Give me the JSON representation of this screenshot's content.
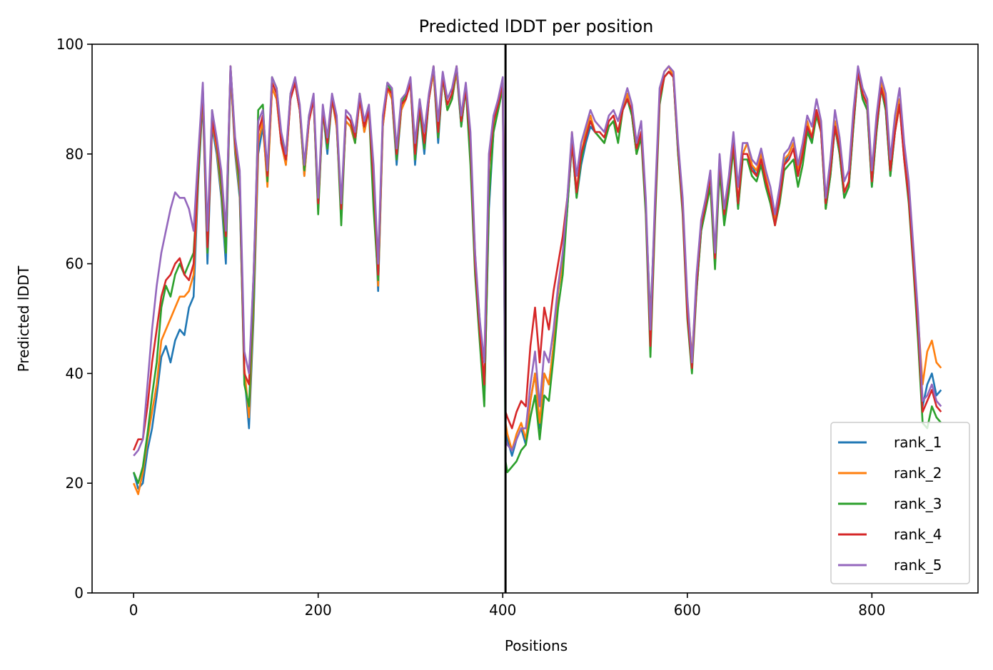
{
  "chart_data": {
    "type": "line",
    "title": "Predicted lDDT per position",
    "xlabel": "Positions",
    "ylabel": "Predicted lDDT",
    "xlim": [
      -45,
      915
    ],
    "ylim": [
      0,
      100
    ],
    "xticks": [
      0,
      200,
      400,
      600,
      800
    ],
    "yticks": [
      0,
      20,
      40,
      60,
      80,
      100
    ],
    "grid": false,
    "legend_position": "lower-right",
    "chain_break": 403,
    "colors": {
      "rank_1": "#1f77b4",
      "rank_2": "#ff7f0e",
      "rank_3": "#2ca02c",
      "rank_4": "#d62728",
      "rank_5": "#9467bd",
      "chain_break": "#000000"
    },
    "x": [
      0,
      5,
      10,
      15,
      20,
      25,
      30,
      35,
      40,
      45,
      50,
      55,
      60,
      65,
      70,
      75,
      80,
      85,
      90,
      95,
      100,
      105,
      110,
      115,
      120,
      125,
      130,
      135,
      140,
      145,
      150,
      155,
      160,
      165,
      170,
      175,
      180,
      185,
      190,
      195,
      200,
      205,
      210,
      215,
      220,
      225,
      230,
      235,
      240,
      245,
      250,
      255,
      260,
      265,
      270,
      275,
      280,
      285,
      290,
      295,
      300,
      305,
      310,
      315,
      320,
      325,
      330,
      335,
      340,
      345,
      350,
      355,
      360,
      365,
      370,
      375,
      380,
      385,
      390,
      395,
      400,
      403,
      405,
      410,
      415,
      420,
      425,
      430,
      435,
      440,
      445,
      450,
      455,
      460,
      465,
      470,
      475,
      480,
      485,
      490,
      495,
      500,
      505,
      510,
      515,
      520,
      525,
      530,
      535,
      540,
      545,
      550,
      555,
      560,
      565,
      570,
      575,
      580,
      585,
      590,
      595,
      600,
      605,
      610,
      615,
      620,
      625,
      630,
      635,
      640,
      645,
      650,
      655,
      660,
      665,
      670,
      675,
      680,
      685,
      690,
      695,
      700,
      705,
      710,
      715,
      720,
      725,
      730,
      735,
      740,
      745,
      750,
      755,
      760,
      765,
      770,
      775,
      780,
      785,
      790,
      795,
      800,
      805,
      810,
      815,
      820,
      825,
      830,
      835,
      840,
      845,
      850,
      855,
      860,
      865,
      870,
      875
    ],
    "series": [
      {
        "name": "rank_1",
        "values": [
          22,
          19,
          20,
          26,
          30,
          36,
          43,
          45,
          42,
          46,
          48,
          47,
          52,
          54,
          75,
          90,
          60,
          85,
          80,
          72,
          60,
          95,
          80,
          72,
          40,
          30,
          50,
          80,
          85,
          75,
          92,
          90,
          82,
          78,
          90,
          93,
          88,
          76,
          86,
          90,
          70,
          88,
          80,
          90,
          85,
          70,
          86,
          85,
          82,
          90,
          84,
          88,
          75,
          55,
          85,
          92,
          90,
          78,
          88,
          90,
          93,
          78,
          88,
          80,
          90,
          95,
          82,
          94,
          88,
          90,
          95,
          85,
          92,
          80,
          60,
          50,
          35,
          70,
          84,
          88,
          92,
          30,
          28,
          25,
          28,
          30,
          27,
          35,
          40,
          30,
          40,
          38,
          45,
          55,
          60,
          70,
          82,
          72,
          78,
          82,
          85,
          84,
          83,
          82,
          85,
          86,
          84,
          88,
          90,
          87,
          80,
          84,
          70,
          50,
          70,
          90,
          94,
          95,
          94,
          80,
          70,
          52,
          42,
          55,
          66,
          70,
          75,
          60,
          78,
          68,
          74,
          82,
          70,
          80,
          82,
          78,
          76,
          80,
          75,
          72,
          68,
          72,
          78,
          80,
          82,
          76,
          80,
          85,
          82,
          88,
          84,
          70,
          76,
          85,
          80,
          72,
          74,
          85,
          95,
          90,
          88,
          74,
          84,
          92,
          88,
          76,
          84,
          90,
          80,
          72,
          60,
          48,
          34,
          38,
          40,
          36,
          37
        ],
        "offsets": [
          0,
          0,
          0,
          0,
          0,
          0,
          0,
          0,
          0,
          0,
          0,
          0,
          0,
          0,
          0,
          0,
          0,
          0,
          0,
          0,
          0,
          0,
          0,
          0,
          0,
          0,
          0,
          0,
          0,
          0,
          0,
          0,
          0,
          0,
          0,
          0,
          0,
          0,
          0,
          0,
          0,
          0,
          0,
          0,
          0,
          0,
          0,
          0,
          0,
          0,
          0,
          0,
          0,
          0,
          0,
          0,
          0,
          0,
          0,
          0,
          0,
          0,
          0,
          0,
          0,
          0,
          0,
          0,
          0,
          0,
          0,
          0,
          0,
          0,
          0,
          0,
          0,
          0,
          0,
          0,
          0,
          0,
          0,
          0,
          0,
          0,
          0,
          0,
          0,
          0,
          0,
          0,
          0,
          0,
          0,
          0,
          0,
          0,
          0,
          0,
          0,
          0,
          0,
          0,
          0,
          0,
          0,
          0,
          0,
          0,
          0,
          0,
          0,
          0,
          0,
          0,
          0,
          0,
          0,
          0,
          0,
          0,
          0,
          0,
          0,
          0,
          0,
          0,
          0,
          0,
          0,
          0,
          0,
          0,
          0,
          0,
          0,
          0,
          0,
          0,
          0,
          0,
          0,
          0,
          0,
          0,
          0,
          0,
          0,
          0,
          0,
          0,
          0,
          0,
          0,
          0,
          0,
          0,
          0,
          0,
          0,
          0,
          0,
          0,
          0,
          0,
          0,
          0,
          0,
          0,
          0,
          0,
          0,
          0,
          0,
          0
        ]
      },
      {
        "name": "rank_2",
        "values": [
          20,
          18,
          22,
          28,
          33,
          38,
          46,
          48,
          50,
          52,
          54,
          54,
          55,
          58,
          76,
          91,
          62,
          86,
          81,
          73,
          62,
          95,
          81,
          73,
          41,
          32,
          52,
          82,
          86,
          74,
          92,
          90,
          82,
          78,
          90,
          93,
          88,
          76,
          86,
          90,
          70,
          88,
          81,
          90,
          85,
          70,
          86,
          85,
          82,
          90,
          84,
          88,
          76,
          56,
          85,
          92,
          90,
          79,
          88,
          90,
          93,
          79,
          88,
          81,
          90,
          95,
          83,
          94,
          88,
          90,
          95,
          86,
          92,
          80,
          62,
          48,
          36,
          72,
          85,
          89,
          92,
          31,
          29,
          26,
          29,
          31,
          28,
          35,
          40,
          31,
          40,
          38,
          45,
          55,
          60,
          70,
          84,
          73,
          80,
          84,
          87,
          84,
          83,
          82,
          85,
          86,
          84,
          88,
          91,
          87,
          80,
          84,
          70,
          49,
          70,
          91,
          95,
          96,
          94,
          81,
          71,
          53,
          43,
          56,
          67,
          71,
          75,
          60,
          78,
          69,
          74,
          82,
          71,
          80,
          82,
          78,
          77,
          80,
          76,
          72,
          68,
          72,
          79,
          80,
          82,
          77,
          81,
          86,
          83,
          88,
          85,
          70,
          77,
          86,
          81,
          73,
          75,
          86,
          95,
          91,
          89,
          75,
          85,
          93,
          90,
          77,
          85,
          90,
          80,
          73,
          62,
          50,
          38,
          44,
          46,
          42,
          41
        ]
      },
      {
        "name": "rank_3",
        "values": [
          22,
          20,
          23,
          29,
          36,
          42,
          52,
          56,
          54,
          58,
          60,
          58,
          60,
          62,
          76,
          92,
          62,
          88,
          82,
          74,
          62,
          96,
          82,
          74,
          38,
          34,
          54,
          88,
          89,
          75,
          94,
          92,
          83,
          79,
          91,
          93,
          88,
          77,
          87,
          90,
          69,
          88,
          81,
          90,
          86,
          67,
          87,
          86,
          82,
          91,
          85,
          88,
          70,
          57,
          86,
          93,
          91,
          79,
          89,
          91,
          93,
          79,
          88,
          81,
          90,
          96,
          83,
          94,
          88,
          90,
          96,
          85,
          92,
          78,
          58,
          46,
          34,
          72,
          84,
          88,
          92,
          24,
          22,
          23,
          24,
          26,
          27,
          32,
          36,
          28,
          36,
          35,
          43,
          52,
          58,
          70,
          82,
          72,
          79,
          83,
          86,
          84,
          83,
          82,
          85,
          86,
          82,
          88,
          90,
          87,
          80,
          83,
          69,
          43,
          68,
          89,
          94,
          95,
          94,
          80,
          69,
          50,
          40,
          55,
          66,
          70,
          74,
          59,
          77,
          67,
          73,
          81,
          70,
          79,
          79,
          76,
          75,
          78,
          74,
          71,
          67,
          71,
          77,
          78,
          79,
          74,
          78,
          84,
          82,
          87,
          84,
          70,
          76,
          85,
          80,
          72,
          74,
          85,
          95,
          90,
          88,
          74,
          84,
          92,
          88,
          76,
          84,
          89,
          79,
          71,
          59,
          46,
          31,
          30,
          34,
          32,
          31
        ]
      },
      {
        "name": "rank_4",
        "values": [
          26,
          28,
          28,
          34,
          42,
          48,
          54,
          57,
          58,
          60,
          61,
          58,
          57,
          60,
          78,
          92,
          63,
          86,
          82,
          76,
          65,
          96,
          82,
          76,
          40,
          38,
          58,
          84,
          87,
          76,
          93,
          91,
          82,
          79,
          90,
          93,
          88,
          78,
          86,
          90,
          71,
          88,
          82,
          90,
          86,
          70,
          87,
          86,
          83,
          90,
          85,
          88,
          75,
          58,
          86,
          92,
          91,
          80,
          89,
          90,
          93,
          80,
          89,
          82,
          90,
          96,
          84,
          94,
          89,
          91,
          96,
          86,
          92,
          82,
          60,
          48,
          38,
          78,
          86,
          89,
          93,
          33,
          32,
          30,
          33,
          35,
          34,
          45,
          52,
          42,
          52,
          48,
          55,
          60,
          65,
          72,
          82,
          73,
          80,
          83,
          86,
          84,
          84,
          83,
          86,
          87,
          84,
          88,
          90,
          88,
          81,
          84,
          71,
          45,
          70,
          90,
          94,
          95,
          94,
          81,
          70,
          51,
          41,
          56,
          67,
          71,
          76,
          61,
          79,
          69,
          75,
          82,
          71,
          80,
          80,
          77,
          76,
          79,
          75,
          72,
          67,
          72,
          78,
          79,
          81,
          76,
          80,
          85,
          83,
          88,
          84,
          71,
          77,
          85,
          81,
          73,
          75,
          86,
          95,
          91,
          89,
          75,
          85,
          92,
          89,
          77,
          84,
          89,
          79,
          72,
          60,
          48,
          33,
          35,
          37,
          34,
          33
        ]
      },
      {
        "name": "rank_5",
        "values": [
          25,
          26,
          28,
          38,
          48,
          56,
          62,
          66,
          70,
          73,
          72,
          72,
          70,
          66,
          80,
          93,
          66,
          88,
          83,
          77,
          66,
          96,
          83,
          77,
          44,
          40,
          58,
          86,
          88,
          77,
          94,
          92,
          84,
          80,
          91,
          94,
          89,
          78,
          87,
          91,
          72,
          89,
          83,
          91,
          87,
          71,
          88,
          87,
          84,
          91,
          86,
          89,
          78,
          60,
          87,
          93,
          92,
          81,
          90,
          91,
          94,
          82,
          90,
          84,
          91,
          96,
          86,
          95,
          90,
          92,
          96,
          87,
          93,
          84,
          62,
          50,
          42,
          80,
          87,
          90,
          94,
          28,
          27,
          26,
          28,
          30,
          30,
          38,
          44,
          34,
          44,
          42,
          48,
          56,
          62,
          72,
          84,
          76,
          82,
          85,
          88,
          86,
          85,
          84,
          87,
          88,
          86,
          89,
          92,
          89,
          82,
          86,
          72,
          48,
          72,
          92,
          95,
          96,
          95,
          82,
          72,
          54,
          42,
          58,
          68,
          72,
          77,
          62,
          80,
          70,
          76,
          84,
          74,
          82,
          82,
          79,
          78,
          81,
          77,
          74,
          69,
          74,
          80,
          81,
          83,
          78,
          82,
          87,
          85,
          90,
          86,
          72,
          79,
          88,
          83,
          75,
          77,
          88,
          96,
          92,
          90,
          77,
          87,
          94,
          91,
          79,
          87,
          92,
          82,
          75,
          63,
          51,
          35,
          36,
          38,
          35,
          34
        ]
      }
    ],
    "legend": [
      "rank_1",
      "rank_2",
      "rank_3",
      "rank_4",
      "rank_5"
    ]
  }
}
